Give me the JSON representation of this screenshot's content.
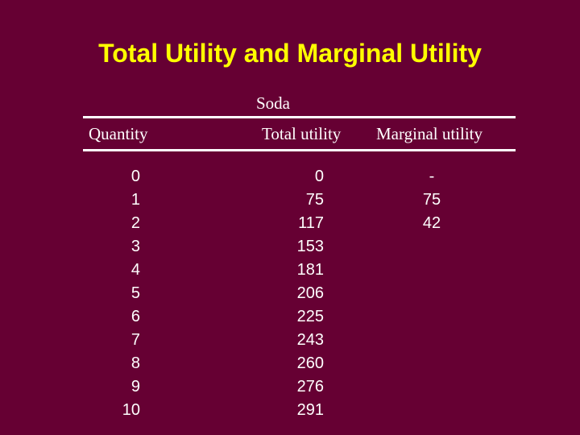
{
  "title": "Total Utility and Marginal Utility",
  "table": {
    "group_header": "Soda",
    "headers": {
      "quantity": "Quantity",
      "total_utility": "Total utility",
      "marginal_utility": "Marginal utility"
    },
    "quantity": [
      "0",
      "1",
      "2",
      "3",
      "4",
      "5",
      "6",
      "7",
      "8",
      "9",
      "10"
    ],
    "total_utility": [
      "0",
      "75",
      "117",
      "153",
      "181",
      "206",
      "225",
      "243",
      "260",
      "276",
      "291"
    ],
    "marginal_utility": [
      "-",
      "75",
      "42"
    ]
  },
  "colors": {
    "background": "#660033",
    "title": "#ffff00",
    "text": "#ffffff"
  }
}
